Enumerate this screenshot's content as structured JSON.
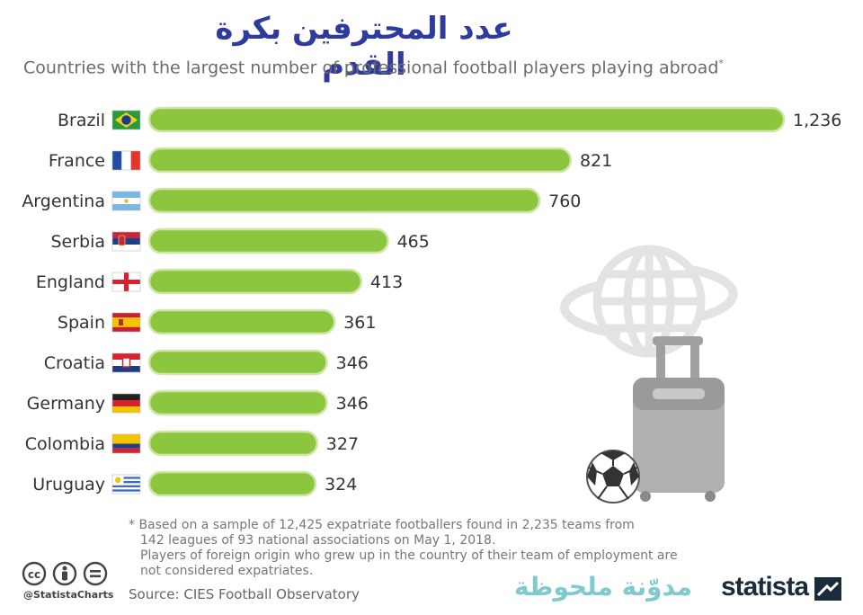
{
  "header": {
    "title_ar": "عدد المحترفين بكرة القدم",
    "subtitle": "Countries with the largest number of professional football players playing abroad",
    "subtitle_mark": "*"
  },
  "chart_data": {
    "type": "bar",
    "orientation": "horizontal",
    "categories": [
      "Brazil",
      "France",
      "Argentina",
      "Serbia",
      "England",
      "Spain",
      "Croatia",
      "Germany",
      "Colombia",
      "Uruguay"
    ],
    "values": [
      1236,
      821,
      760,
      465,
      413,
      361,
      346,
      346,
      327,
      324
    ],
    "value_labels": [
      "1,236",
      "821",
      "760",
      "465",
      "413",
      "361",
      "346",
      "346",
      "327",
      "324"
    ],
    "flags": [
      "flag-brazil",
      "flag-france",
      "flag-argentina",
      "flag-serbia",
      "flag-england",
      "flag-spain",
      "flag-croatia",
      "flag-germany",
      "flag-colombia",
      "flag-uruguay"
    ],
    "bar_color": "#8cc63f",
    "bar_outline": "#cfe6a8",
    "xlim": [
      0,
      1236
    ],
    "grid": false,
    "title": "عدد المحترفين بكرة القدم",
    "xlabel": "",
    "ylabel": ""
  },
  "footnote": {
    "line1": "* Based on a sample of 12,425 expatriate footballers found in 2,235 teams from",
    "line2": "142 leagues of 93 national associations on May 1, 2018.",
    "line3": "Players of foreign origin who grew up in the country of their team of employment are",
    "line4": "not considered expatriates."
  },
  "source": "Source: CIES Football Observatory",
  "handle": "@StatistaCharts",
  "watermark": "مدوّنة ملحوظة",
  "brand": "statista",
  "icons": [
    "cc-icon",
    "person-icon",
    "equal-icon",
    "globe-icon",
    "suitcase-icon",
    "football-icon",
    "statista-logo-icon"
  ],
  "colors": {
    "title": "#2e3a9e",
    "bar": "#8cc63f",
    "illustration": "#a6a6a6",
    "watermark": "#7fc9cf"
  }
}
